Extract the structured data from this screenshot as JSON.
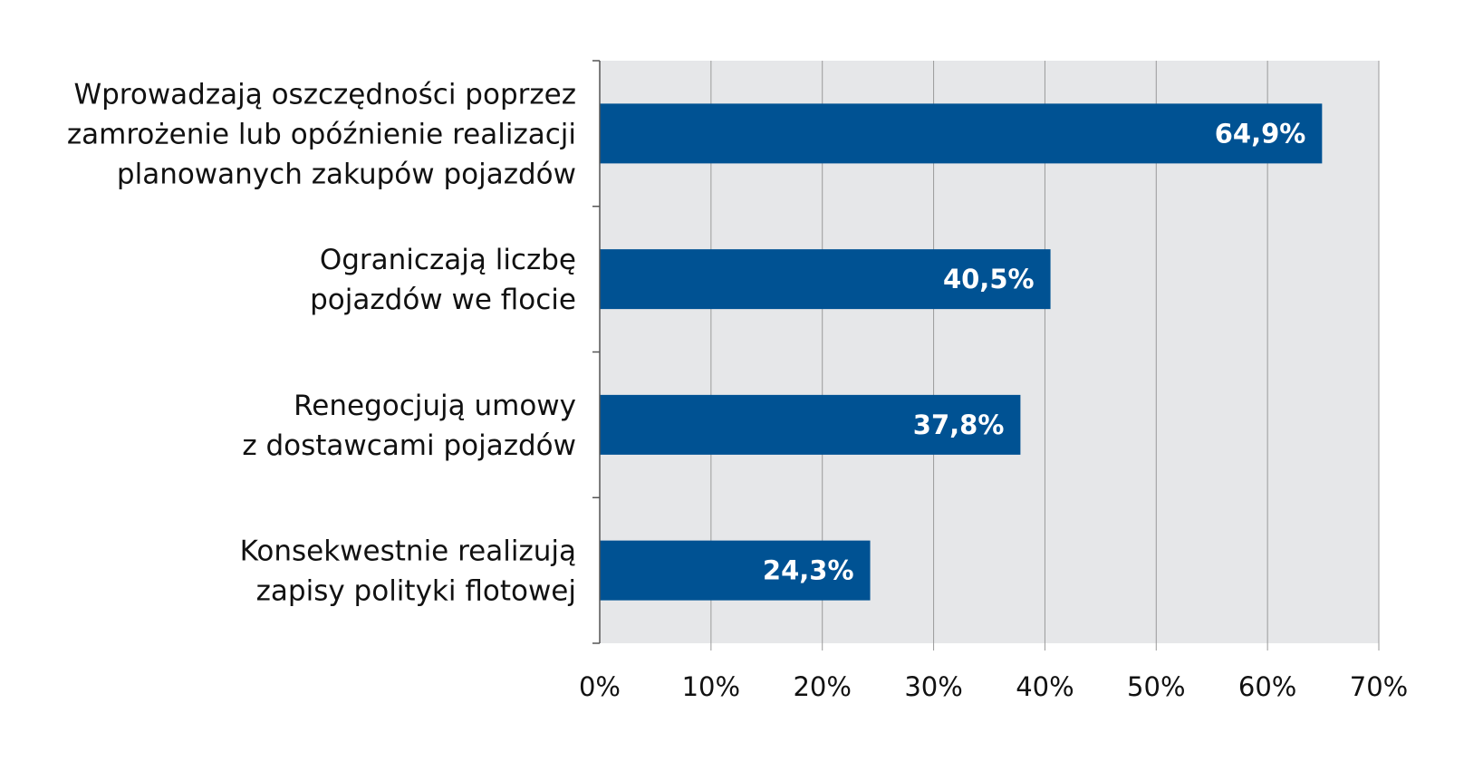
{
  "chart_data": {
    "type": "bar",
    "orientation": "horizontal",
    "title": "",
    "xlabel": "",
    "ylabel": "",
    "categories": [
      [
        "Wprowadzają oszczędności poprzez",
        "zamrożenie lub opóźnienie realizacji",
        "planowanych zakupów pojazdów"
      ],
      [
        "Ograniczają liczbę",
        "pojazdów we flocie"
      ],
      [
        "Renegocjują umowy",
        "z dostawcami pojazdów"
      ],
      [
        "Konsekwestnie realizują",
        "zapisy polityki flotowej"
      ]
    ],
    "values": [
      64.9,
      40.5,
      37.8,
      24.3
    ],
    "data_labels": [
      "64,9%",
      "40,5%",
      "37,8%",
      "24,3%"
    ],
    "xlim": [
      0,
      70
    ],
    "xticks": [
      0,
      10,
      20,
      30,
      40,
      50,
      60,
      70
    ],
    "xtick_labels": [
      "0%",
      "10%",
      "20%",
      "30%",
      "40%",
      "50%",
      "60%",
      "70%"
    ],
    "grid": true,
    "legend": "none",
    "colors": {
      "bar": "#005293",
      "plot_background": "#e6e7e9",
      "gridline": "#9a9a9a",
      "axis": "#555555",
      "text": "#111111",
      "data_label": "#ffffff"
    }
  }
}
